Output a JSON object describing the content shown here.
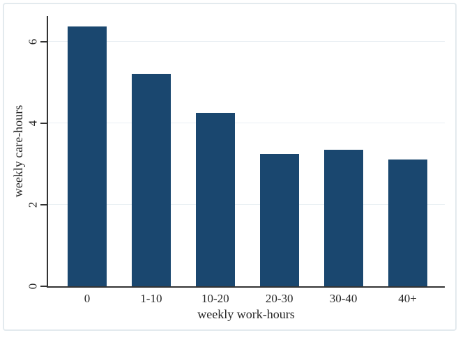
{
  "figure": {
    "background": "#ffffff",
    "border_color": "#e3eaee",
    "bar_color": "#1a476f",
    "grid_color": "#e9eff3",
    "axis_color": "#333333",
    "text_color": "#262626"
  },
  "chart_data": {
    "type": "bar",
    "title": "",
    "categories": [
      "0",
      "1-10",
      "10-20",
      "20-30",
      "30-40",
      "40+"
    ],
    "values": [
      6.38,
      5.22,
      4.25,
      3.24,
      3.35,
      3.11
    ],
    "xlabel": "weekly work-hours",
    "ylabel": "weekly care-hours",
    "yticks": [
      0,
      2,
      4,
      6
    ],
    "ylim": [
      0,
      6.63
    ],
    "grid": true,
    "legend_position": "none"
  }
}
